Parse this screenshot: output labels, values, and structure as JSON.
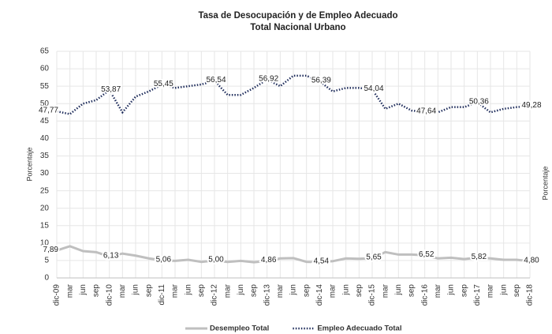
{
  "chart_data": {
    "type": "line",
    "title": "Tasa de Desocupación y de Empleo Adecuado",
    "subtitle": "Total Nacional Urbano",
    "ylabel": "Porcentaje",
    "categories": [
      "dic-09",
      "mar",
      "jun",
      "sep",
      "dic-10",
      "mar",
      "jun",
      "sep",
      "dic-11",
      "mar",
      "jun",
      "sep",
      "dic-12",
      "mar",
      "jun",
      "sep",
      "dic-13",
      "mar",
      "jun",
      "sep",
      "dic-14",
      "mar",
      "jun",
      "sep",
      "dic-15",
      "mar",
      "jun",
      "sep",
      "dic-16",
      "mar",
      "jun",
      "sep",
      "dic-17",
      "mar",
      "jun",
      "sep",
      "dic-18"
    ],
    "series": [
      {
        "name": "Desempleo Total",
        "color": "#bfbfbf",
        "style": "solid",
        "values": [
          7.89,
          9.1,
          7.7,
          7.4,
          6.13,
          7.0,
          6.4,
          5.6,
          5.06,
          4.9,
          5.2,
          4.6,
          5.0,
          4.6,
          4.9,
          4.5,
          4.86,
          5.6,
          5.7,
          4.6,
          4.54,
          4.8,
          5.6,
          5.5,
          5.65,
          7.4,
          6.7,
          6.7,
          6.52,
          5.6,
          5.8,
          5.4,
          5.82,
          5.6,
          5.2,
          5.2,
          4.8
        ],
        "value_labels": [
          "7,89",
          null,
          null,
          null,
          "6,13",
          null,
          null,
          null,
          "5,06",
          null,
          null,
          null,
          "5,00",
          null,
          null,
          null,
          "4,86",
          null,
          null,
          null,
          "4,54",
          null,
          null,
          null,
          "5,65",
          null,
          null,
          null,
          "6,52",
          null,
          null,
          null,
          "5,82",
          null,
          null,
          null,
          "4,80"
        ]
      },
      {
        "name": "Empleo Adecuado Total",
        "color": "#1f2d5c",
        "style": "dotted",
        "values": [
          47.77,
          47.0,
          50.0,
          51.0,
          53.87,
          47.5,
          52.0,
          53.5,
          55.45,
          54.5,
          55.0,
          55.5,
          56.54,
          52.5,
          52.5,
          54.5,
          56.92,
          55.0,
          58.0,
          58.0,
          56.39,
          53.5,
          54.5,
          54.5,
          54.04,
          48.5,
          50.0,
          48.0,
          47.64,
          47.5,
          49.0,
          49.0,
          50.36,
          47.5,
          48.5,
          49.0,
          49.28
        ],
        "value_labels": [
          "47,77",
          null,
          null,
          null,
          "53,87",
          null,
          null,
          null,
          "55,45",
          null,
          null,
          null,
          "56,54",
          null,
          null,
          null,
          "56,92",
          null,
          null,
          null,
          "56,39",
          null,
          null,
          null,
          "54,04",
          null,
          null,
          null,
          "47,64",
          null,
          null,
          null,
          "50,36",
          null,
          null,
          null,
          "49,28"
        ]
      }
    ],
    "ylim": [
      0,
      65
    ],
    "yticks": [
      0,
      5,
      10,
      15,
      20,
      25,
      30,
      35,
      40,
      45,
      50,
      55,
      60,
      65
    ],
    "grid": true,
    "legend": "bottom"
  }
}
